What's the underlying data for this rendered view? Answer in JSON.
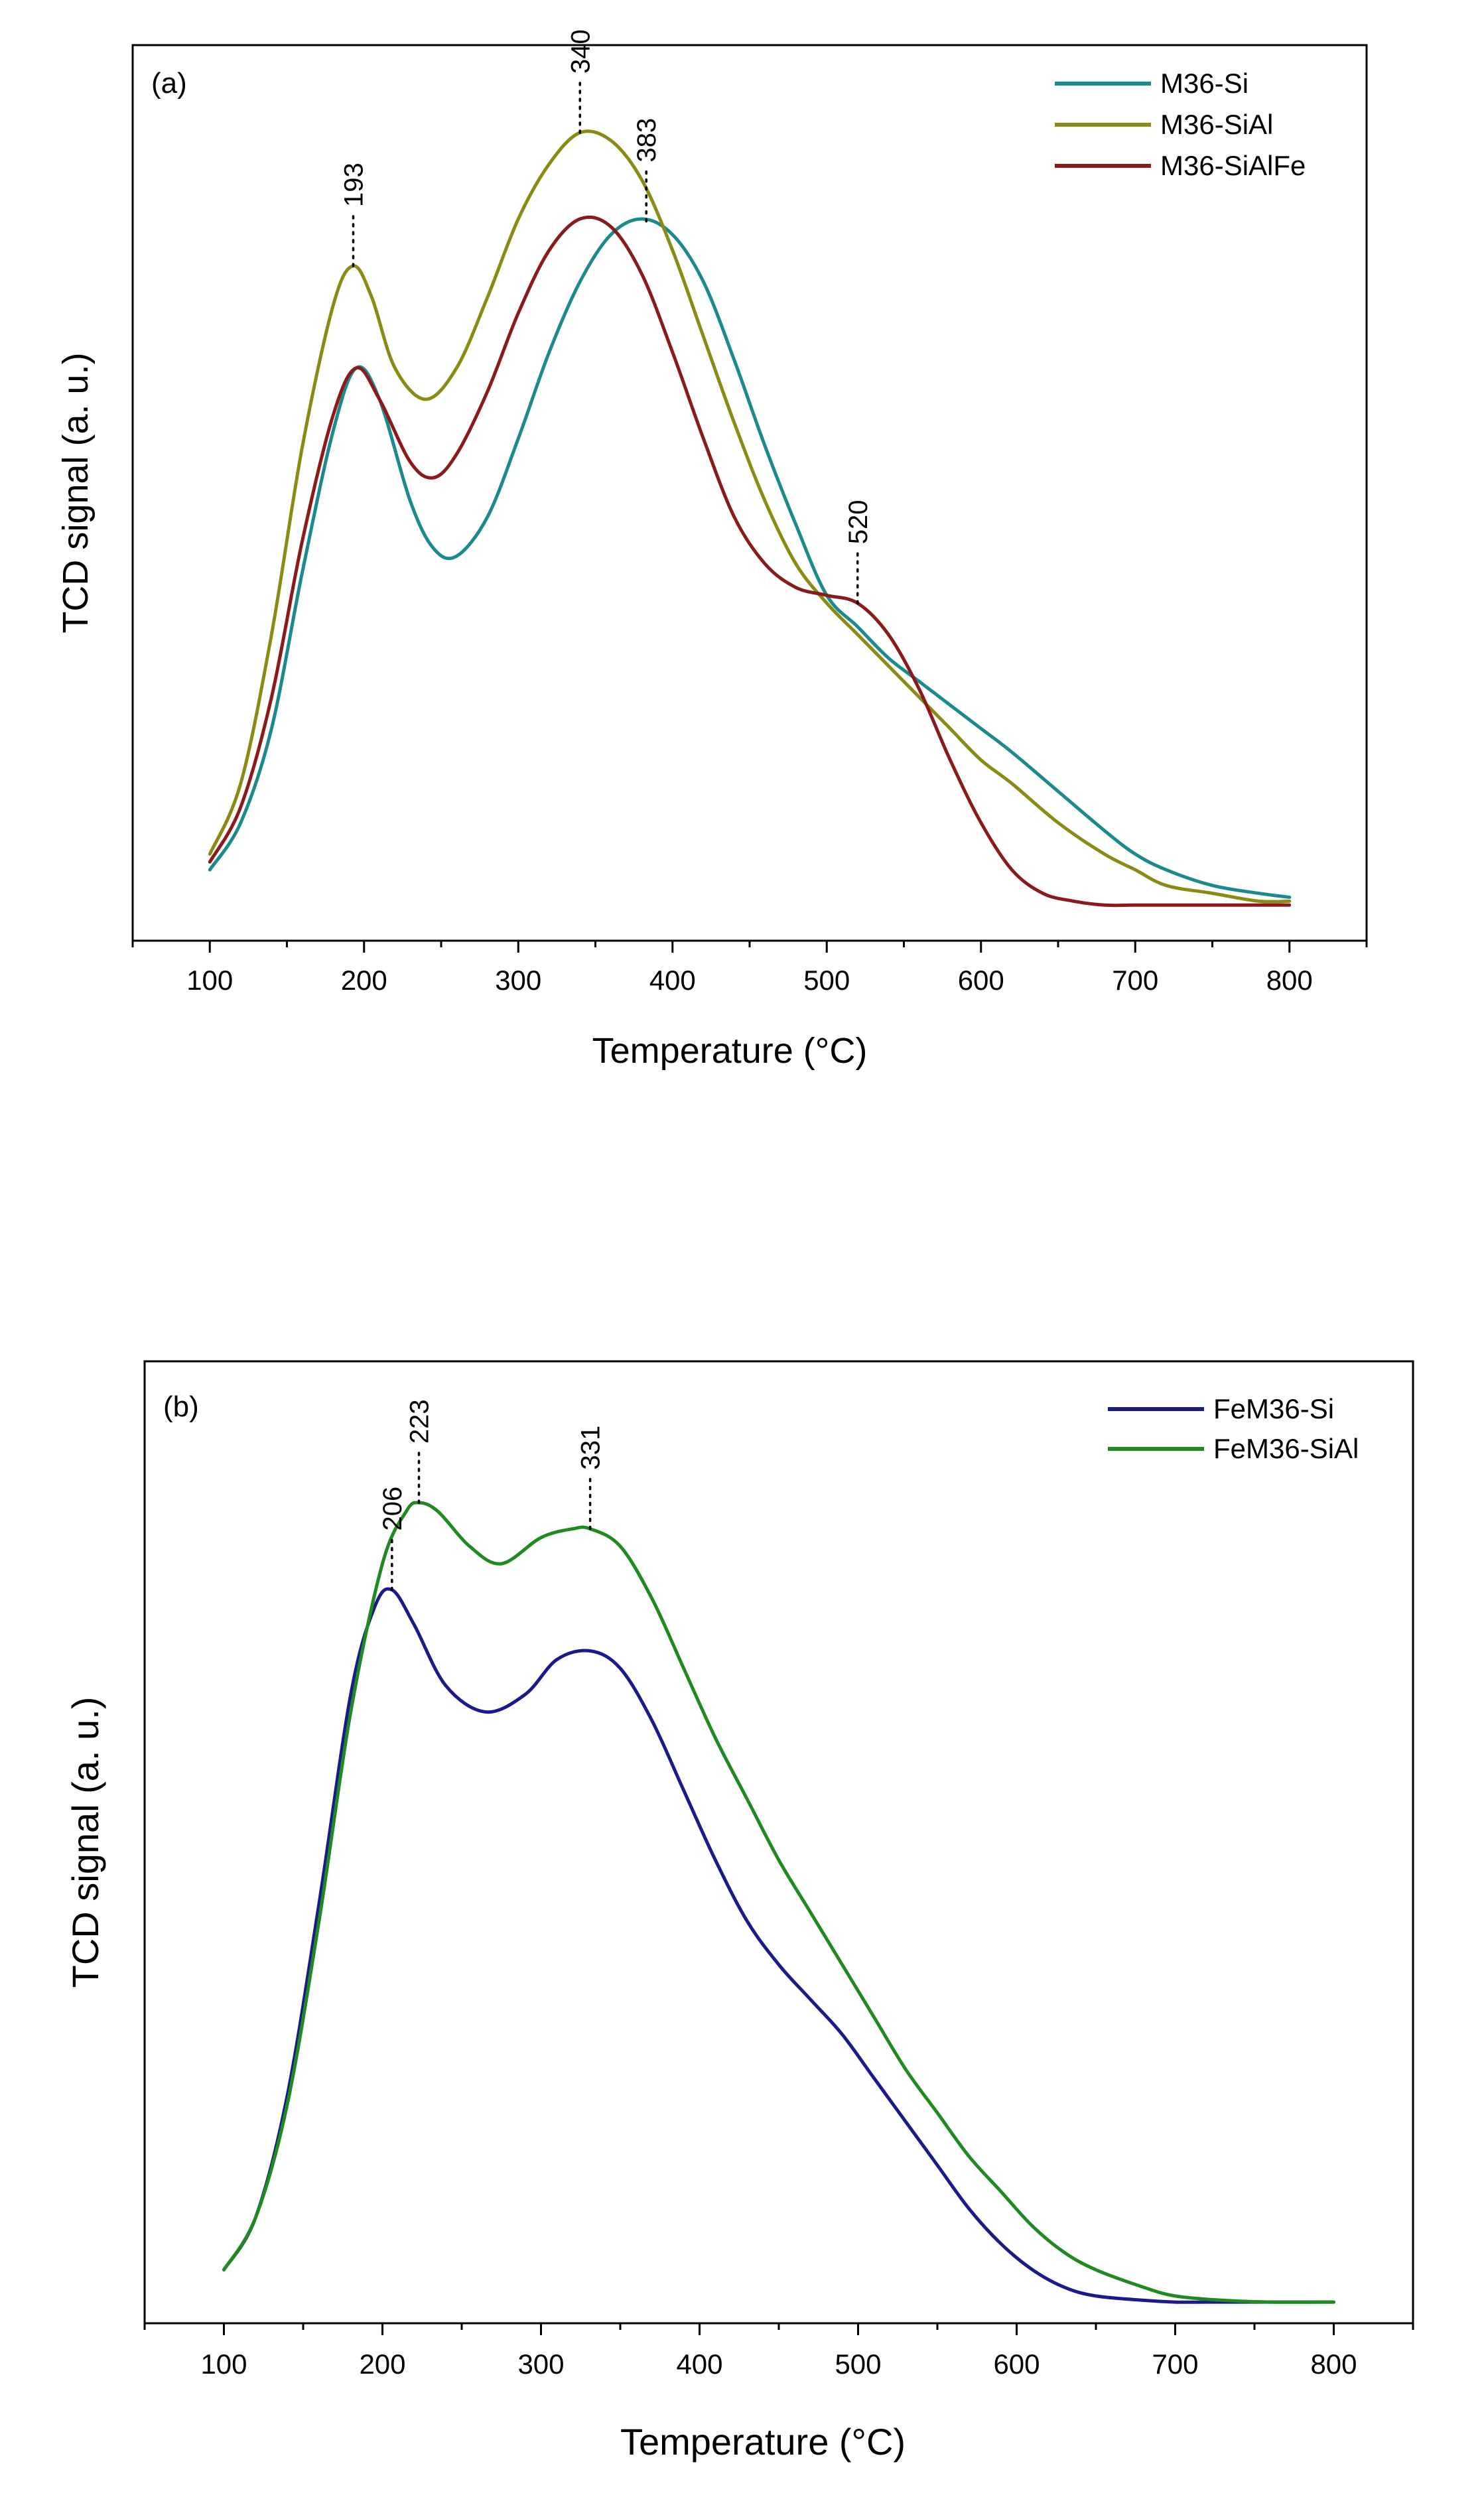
{
  "chart_data": [
    {
      "type": "line",
      "panel_label": "(a)",
      "xlabel": "Temperature (°C)",
      "ylabel": "TCD signal (a. u.)",
      "xlim": [
        50,
        850
      ],
      "ylim": [
        0,
        1
      ],
      "x_ticks": [
        100,
        200,
        300,
        400,
        500,
        600,
        700,
        800
      ],
      "x_tick_labels": [
        "100",
        "200",
        "300",
        "400",
        "500",
        "600",
        "700",
        "800"
      ],
      "y_ticks_shown": false,
      "legend_position": "top-right",
      "series": [
        {
          "name": "M36-Si",
          "color": "#1a8a8f",
          "x": [
            100,
            120,
            140,
            160,
            180,
            195,
            210,
            230,
            245,
            260,
            280,
            300,
            320,
            340,
            360,
            380,
            400,
            420,
            440,
            460,
            480,
            500,
            520,
            540,
            560,
            580,
            600,
            620,
            650,
            680,
            700,
            720,
            750,
            780,
            800
          ],
          "y": [
            0.06,
            0.12,
            0.24,
            0.44,
            0.62,
            0.7,
            0.66,
            0.53,
            0.47,
            0.46,
            0.51,
            0.61,
            0.72,
            0.81,
            0.87,
            0.89,
            0.87,
            0.81,
            0.71,
            0.6,
            0.5,
            0.41,
            0.37,
            0.33,
            0.3,
            0.27,
            0.24,
            0.21,
            0.16,
            0.11,
            0.08,
            0.06,
            0.04,
            0.03,
            0.025
          ]
        },
        {
          "name": "M36-SiAl",
          "color": "#8a8a14",
          "x": [
            100,
            120,
            140,
            160,
            180,
            193,
            205,
            220,
            240,
            260,
            280,
            300,
            320,
            340,
            360,
            380,
            400,
            420,
            440,
            460,
            480,
            500,
            520,
            540,
            560,
            580,
            600,
            620,
            650,
            680,
            700,
            720,
            750,
            780,
            800
          ],
          "y": [
            0.08,
            0.17,
            0.36,
            0.6,
            0.78,
            0.83,
            0.79,
            0.7,
            0.66,
            0.7,
            0.79,
            0.89,
            0.96,
            1.0,
            0.99,
            0.94,
            0.85,
            0.74,
            0.63,
            0.53,
            0.45,
            0.4,
            0.36,
            0.32,
            0.28,
            0.24,
            0.2,
            0.17,
            0.12,
            0.08,
            0.06,
            0.04,
            0.03,
            0.02,
            0.02
          ]
        },
        {
          "name": "M36-SiAlFe",
          "color": "#8b1a1a",
          "x": [
            100,
            120,
            140,
            160,
            180,
            195,
            210,
            230,
            245,
            260,
            280,
            300,
            320,
            340,
            360,
            380,
            400,
            420,
            440,
            460,
            480,
            500,
            520,
            540,
            560,
            580,
            600,
            620,
            640,
            660,
            680,
            700,
            720,
            750,
            800
          ],
          "y": [
            0.07,
            0.14,
            0.28,
            0.48,
            0.64,
            0.7,
            0.66,
            0.58,
            0.56,
            0.59,
            0.67,
            0.77,
            0.85,
            0.89,
            0.88,
            0.82,
            0.72,
            0.61,
            0.51,
            0.45,
            0.42,
            0.41,
            0.4,
            0.36,
            0.29,
            0.2,
            0.12,
            0.06,
            0.03,
            0.02,
            0.015,
            0.015,
            0.015,
            0.015,
            0.015
          ]
        }
      ],
      "annotations": [
        {
          "text": "193",
          "x": 193,
          "series": "M36-SiAl"
        },
        {
          "text": "340",
          "x": 340,
          "series": "M36-SiAl"
        },
        {
          "text": "383",
          "x": 383,
          "series": "M36-Si"
        },
        {
          "text": "520",
          "x": 520,
          "series": "M36-SiAlFe"
        }
      ]
    },
    {
      "type": "line",
      "panel_label": "(b)",
      "xlabel": "Temperature (°C)",
      "ylabel": "TCD signal (a. u.)",
      "xlim": [
        50,
        850
      ],
      "ylim": [
        0,
        1
      ],
      "x_ticks": [
        100,
        200,
        300,
        400,
        500,
        600,
        700,
        800
      ],
      "x_tick_labels": [
        "100",
        "200",
        "300",
        "400",
        "500",
        "600",
        "700",
        "800"
      ],
      "y_ticks_shown": false,
      "legend_position": "top-right",
      "series": [
        {
          "name": "FeM36-Si",
          "color": "#1a1a8a",
          "x": [
            100,
            120,
            140,
            160,
            180,
            195,
            206,
            220,
            240,
            265,
            290,
            310,
            331,
            350,
            370,
            390,
            410,
            430,
            450,
            470,
            490,
            510,
            530,
            550,
            570,
            590,
            610,
            630,
            650,
            680,
            700,
            720,
            750,
            800
          ],
          "y": [
            0.04,
            0.1,
            0.24,
            0.46,
            0.7,
            0.8,
            0.82,
            0.78,
            0.71,
            0.68,
            0.7,
            0.74,
            0.75,
            0.73,
            0.67,
            0.59,
            0.51,
            0.44,
            0.39,
            0.35,
            0.31,
            0.26,
            0.21,
            0.16,
            0.11,
            0.07,
            0.04,
            0.02,
            0.01,
            0.005,
            0.003,
            0.003,
            0.003,
            0.003
          ]
        },
        {
          "name": "FeM36-SiAl",
          "color": "#1f8a1f",
          "x": [
            100,
            120,
            140,
            160,
            180,
            200,
            215,
            223,
            235,
            255,
            275,
            300,
            320,
            331,
            350,
            370,
            390,
            410,
            430,
            450,
            470,
            490,
            510,
            530,
            550,
            570,
            590,
            610,
            630,
            650,
            680,
            700,
            730,
            760,
            800
          ],
          "y": [
            0.04,
            0.1,
            0.23,
            0.44,
            0.68,
            0.85,
            0.91,
            0.92,
            0.91,
            0.87,
            0.85,
            0.88,
            0.89,
            0.89,
            0.87,
            0.81,
            0.73,
            0.65,
            0.58,
            0.51,
            0.45,
            0.39,
            0.33,
            0.27,
            0.22,
            0.17,
            0.13,
            0.09,
            0.06,
            0.04,
            0.02,
            0.01,
            0.005,
            0.003,
            0.003
          ]
        }
      ],
      "annotations": [
        {
          "text": "206",
          "x": 206,
          "series": "FeM36-Si"
        },
        {
          "text": "223",
          "x": 223,
          "series": "FeM36-SiAl"
        },
        {
          "text": "331",
          "x": 331,
          "series": "FeM36-SiAl"
        }
      ]
    }
  ]
}
